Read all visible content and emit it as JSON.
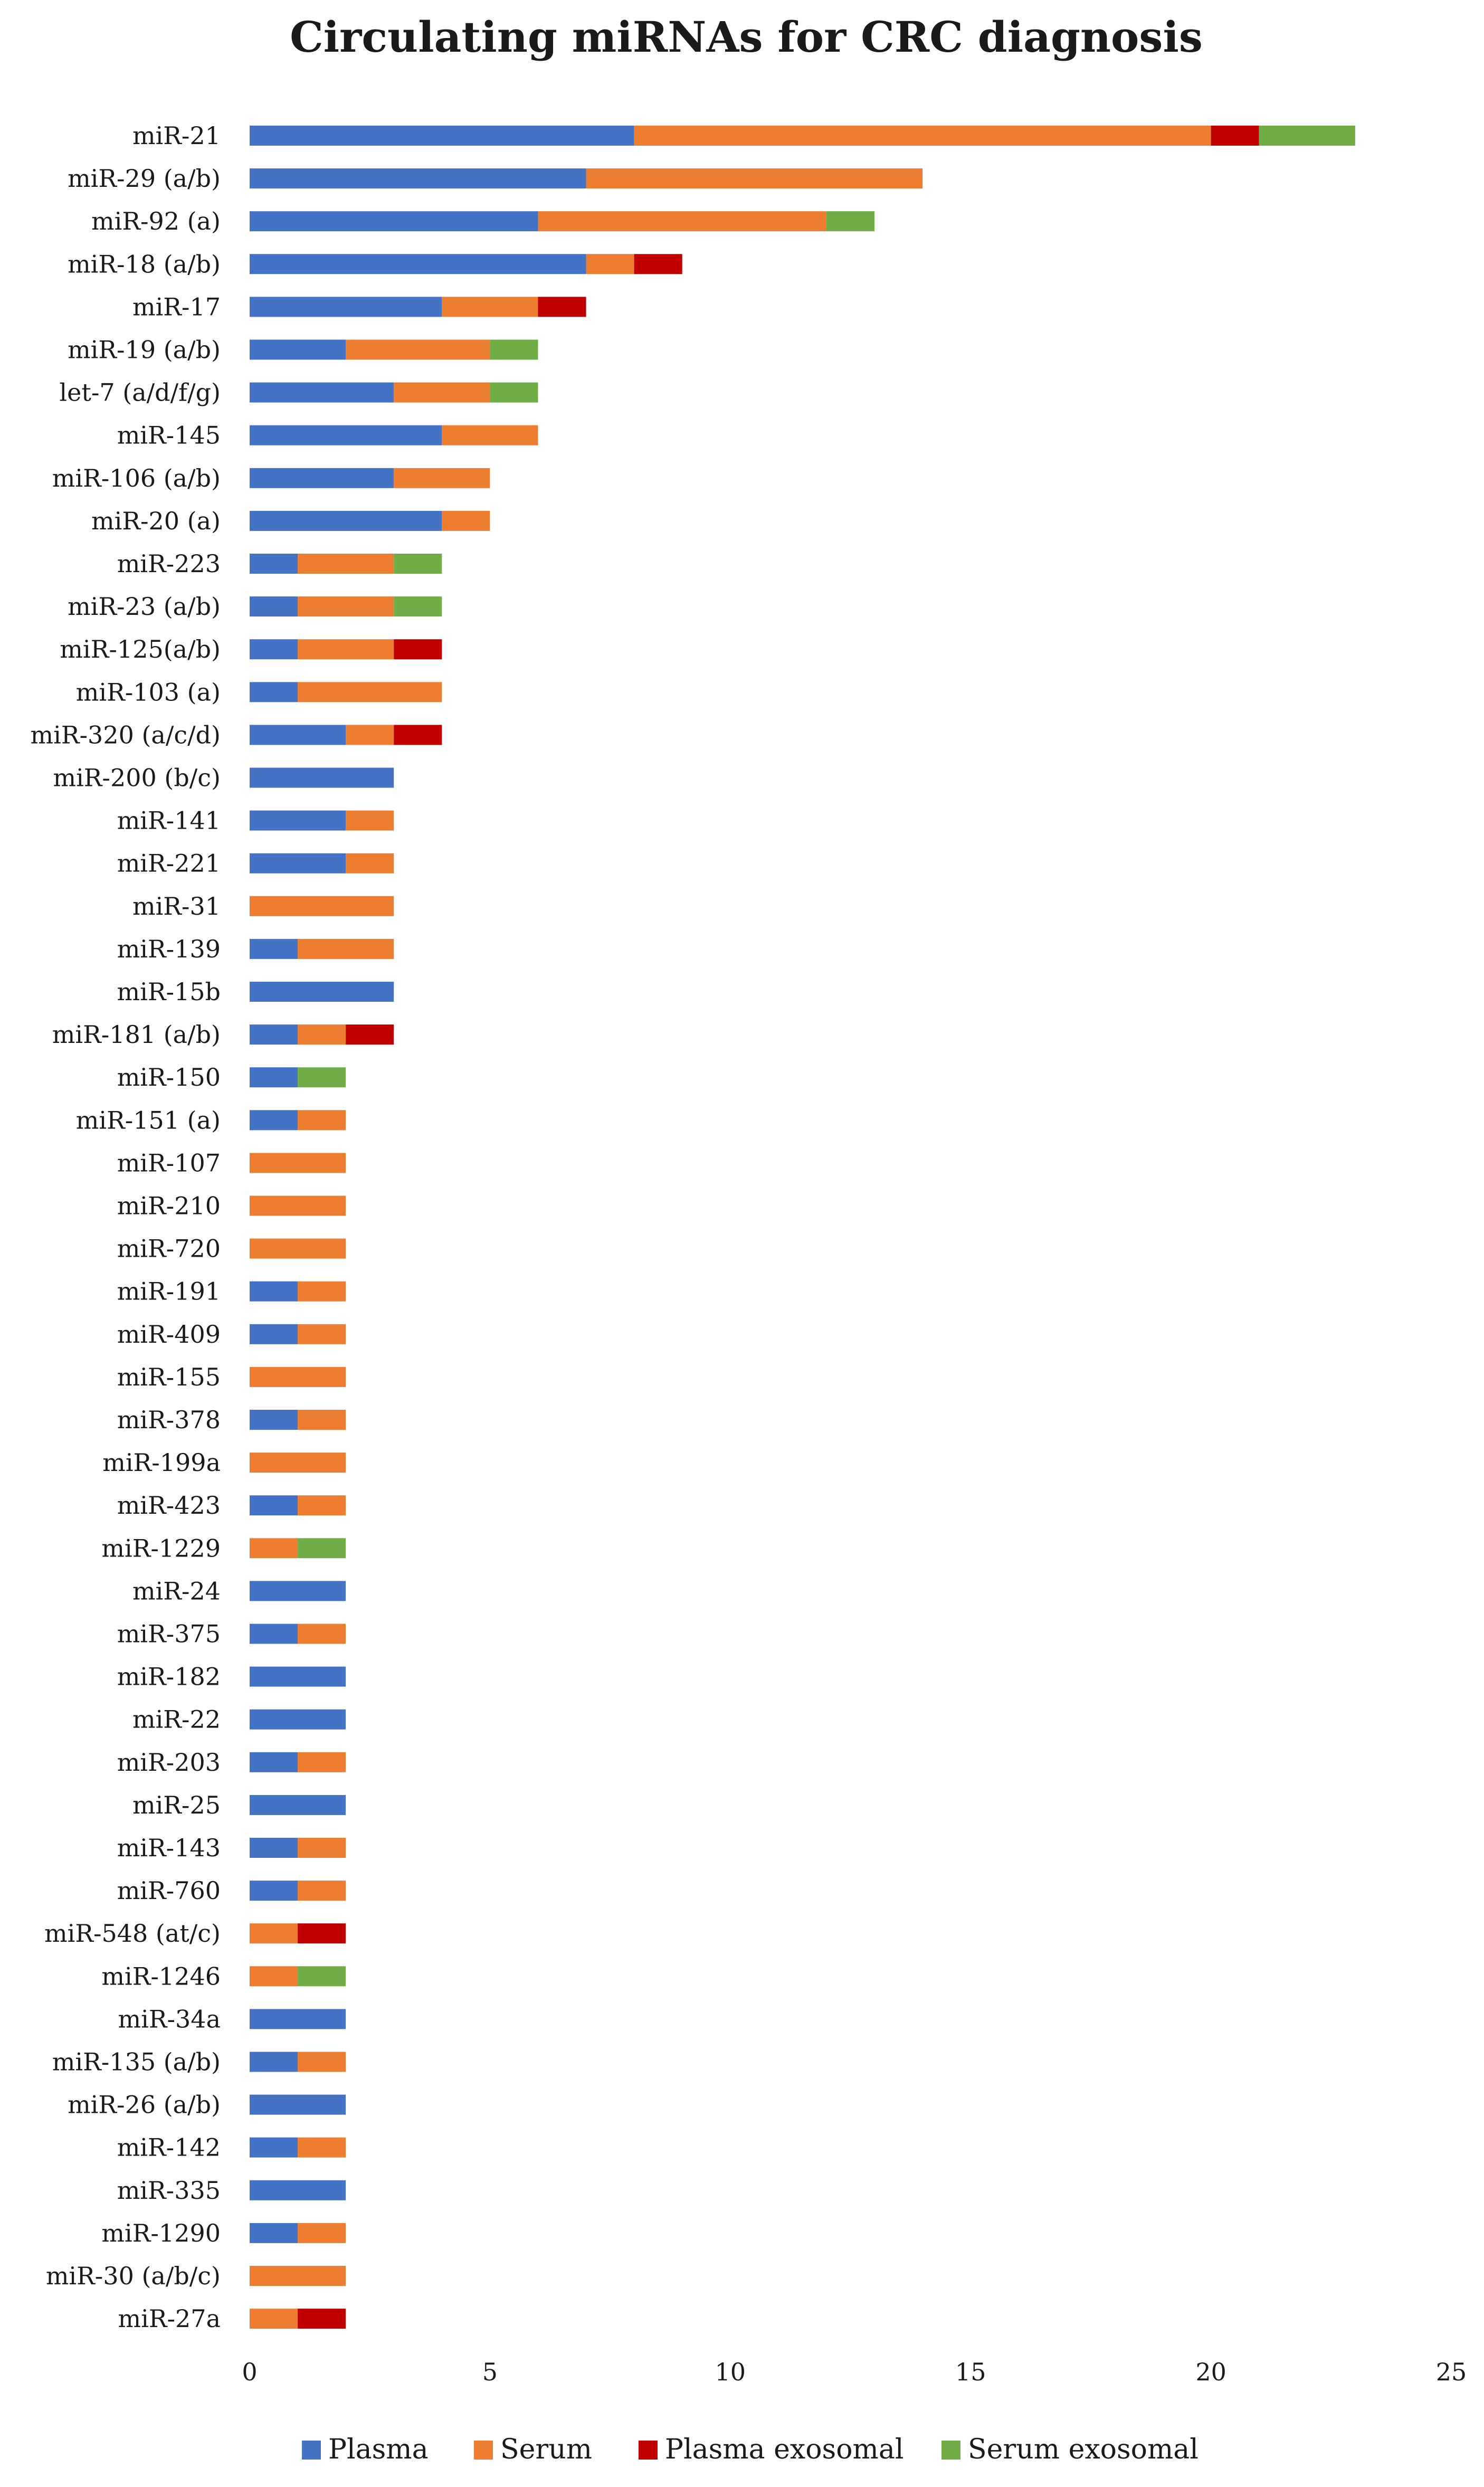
{
  "chart_data": {
    "type": "bar",
    "orientation": "horizontal",
    "stacked": true,
    "title": "Circulating miRNAs for CRC diagnosis",
    "xlabel": "",
    "ylabel": "",
    "xlim": [
      0,
      25
    ],
    "xticks": [
      0,
      5,
      10,
      15,
      20,
      25
    ],
    "grid": false,
    "legend_position": "bottom",
    "categories": [
      "miR-21",
      "miR-29 (a/b)",
      "miR-92 (a)",
      "miR-18 (a/b)",
      "miR-17",
      "miR-19 (a/b)",
      "let-7 (a/d/f/g)",
      "miR-145",
      "miR-106 (a/b)",
      "miR-20 (a)",
      "miR-223",
      "miR-23 (a/b)",
      "miR-125(a/b)",
      "miR-103 (a)",
      "miR-320 (a/c/d)",
      "miR-200 (b/c)",
      "miR-141",
      "miR-221",
      "miR-31",
      "miR-139",
      "miR-15b",
      "miR-181 (a/b)",
      "miR-150",
      "miR-151 (a)",
      "miR-107",
      "miR-210",
      "miR-720",
      "miR-191",
      "miR-409",
      "miR-155",
      "miR-378",
      "miR-199a",
      "miR-423",
      "miR-1229",
      "miR-24",
      "miR-375",
      "miR-182",
      "miR-22",
      "miR-203",
      "miR-25",
      "miR-143",
      "miR-760",
      "miR-548 (at/c)",
      "miR-1246",
      "miR-34a",
      "miR-135 (a/b)",
      "miR-26 (a/b)",
      "miR-142",
      "miR-335",
      "miR-1290",
      "miR-30 (a/b/c)",
      "miR-27a"
    ],
    "series": [
      {
        "name": "Plasma",
        "color": "#4472c4",
        "values": [
          8,
          7,
          6,
          7,
          4,
          2,
          3,
          4,
          3,
          4,
          1,
          1,
          1,
          1,
          2,
          3,
          2,
          2,
          0,
          1,
          3,
          1,
          1,
          1,
          0,
          0,
          0,
          1,
          1,
          0,
          1,
          0,
          1,
          0,
          2,
          1,
          2,
          2,
          1,
          2,
          1,
          1,
          0,
          0,
          2,
          1,
          2,
          1,
          2,
          1,
          0,
          0
        ]
      },
      {
        "name": "Serum",
        "color": "#ed7d31",
        "values": [
          12,
          7,
          6,
          1,
          2,
          3,
          2,
          2,
          2,
          1,
          2,
          2,
          2,
          3,
          1,
          0,
          1,
          1,
          3,
          2,
          0,
          1,
          0,
          1,
          2,
          2,
          2,
          1,
          1,
          2,
          1,
          2,
          1,
          1,
          0,
          1,
          0,
          0,
          1,
          0,
          1,
          1,
          1,
          1,
          0,
          1,
          0,
          1,
          0,
          1,
          2,
          1
        ]
      },
      {
        "name": "Plasma exosomal",
        "color": "#c00000",
        "values": [
          1,
          0,
          0,
          1,
          1,
          0,
          0,
          0,
          0,
          0,
          0,
          0,
          1,
          0,
          1,
          0,
          0,
          0,
          0,
          0,
          0,
          1,
          0,
          0,
          0,
          0,
          0,
          0,
          0,
          0,
          0,
          0,
          0,
          0,
          0,
          0,
          0,
          0,
          0,
          0,
          0,
          0,
          1,
          0,
          0,
          0,
          0,
          0,
          0,
          0,
          0,
          1
        ]
      },
      {
        "name": "Serum exosomal",
        "color": "#70ad47",
        "values": [
          2,
          0,
          1,
          0,
          0,
          1,
          1,
          0,
          0,
          0,
          1,
          1,
          0,
          0,
          0,
          0,
          0,
          0,
          0,
          0,
          0,
          0,
          1,
          0,
          0,
          0,
          0,
          0,
          0,
          0,
          0,
          0,
          0,
          1,
          0,
          0,
          0,
          0,
          0,
          0,
          0,
          0,
          0,
          1,
          0,
          0,
          0,
          0,
          0,
          0,
          0,
          0
        ]
      }
    ]
  }
}
